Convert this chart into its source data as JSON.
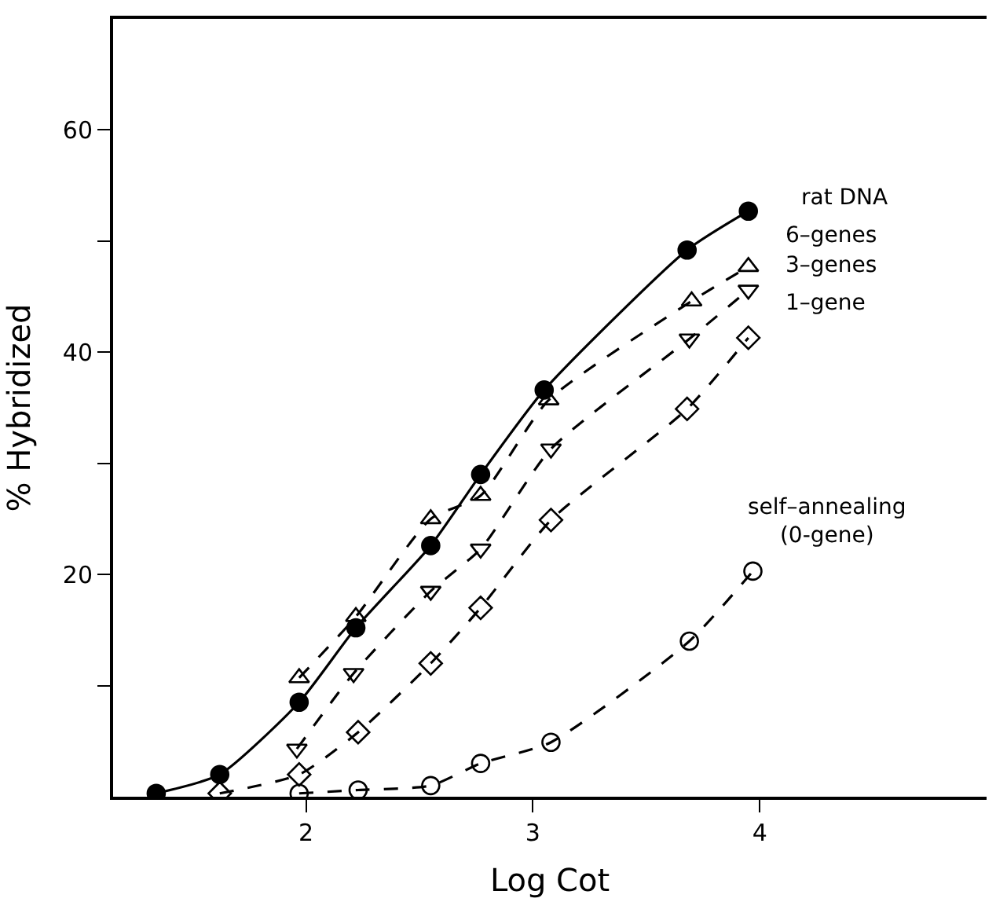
{
  "chart_data": {
    "type": "line",
    "xlabel": "Log Cot",
    "ylabel": "% Hybridized",
    "xlim": [
      1.15,
      5.0
    ],
    "ylim": [
      0,
      70
    ],
    "xticks": [
      2,
      3,
      4
    ],
    "yticks": [
      {
        "value": 10,
        "label": null
      },
      20,
      {
        "value": 30,
        "label": null
      },
      40,
      {
        "value": 50,
        "label": null
      },
      60
    ],
    "series": [
      {
        "name": "rat DNA",
        "color": "#000000",
        "line_style": "solid",
        "marker": "circle",
        "x": [
          1.34,
          1.62,
          1.97,
          2.22,
          2.55,
          2.77,
          3.05,
          3.68,
          3.95
        ],
        "values": [
          0.3,
          2.0,
          8.5,
          15.2,
          22.6,
          29.0,
          36.6,
          49.2,
          52.7
        ]
      },
      {
        "name": "6–genes",
        "color": "#000000",
        "line_style": "dashed",
        "marker": "triangle",
        "x": [
          1.97,
          2.22,
          2.55,
          2.77,
          3.07,
          3.7,
          3.95
        ],
        "values": [
          10.7,
          16.2,
          25.0,
          27.1,
          35.7,
          44.6,
          47.7
        ]
      },
      {
        "name": "3–genes",
        "color": "#000000",
        "line_style": "dashed",
        "marker": "triangle",
        "x": [
          1.96,
          2.21,
          2.55,
          2.77,
          3.08,
          3.69,
          3.95
        ],
        "values": [
          4.3,
          11.1,
          18.5,
          22.3,
          31.3,
          41.2,
          45.6
        ]
      },
      {
        "name": "1–gene",
        "color": "#000000",
        "line_style": "dashed",
        "marker": "diamond",
        "x": [
          1.62,
          1.97,
          2.23,
          2.55,
          2.77,
          3.08,
          3.68,
          3.95
        ],
        "values": [
          0.3,
          2.0,
          5.8,
          12.0,
          17.0,
          24.9,
          34.9,
          41.3
        ]
      },
      {
        "name": "self–annealing\n(0-gene)",
        "color": "#000000",
        "line_style": "dashed",
        "marker": "circle",
        "x": [
          1.97,
          2.23,
          2.55,
          2.77,
          3.08,
          3.69,
          3.97
        ],
        "values": [
          0.3,
          0.6,
          1.0,
          3.0,
          4.9,
          14.0,
          20.3
        ]
      }
    ]
  }
}
